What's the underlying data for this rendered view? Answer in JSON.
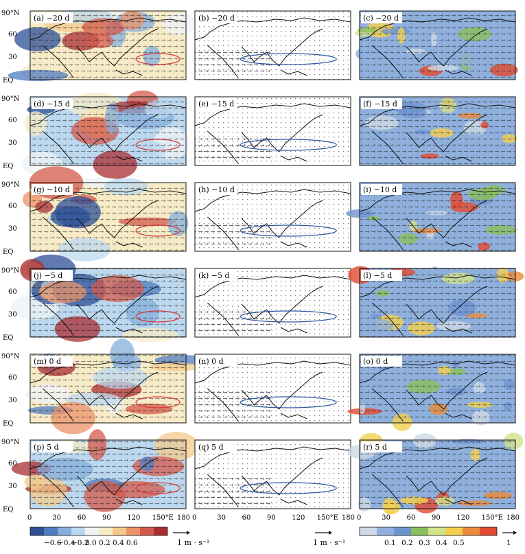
{
  "latitude_ticks": [
    "90°N",
    "60",
    "30",
    "EQ"
  ],
  "longitude_ticks": [
    "0",
    "30",
    "60",
    "90",
    "120",
    "150°E",
    "180"
  ],
  "panel_rows": [
    {
      "labels": [
        "(a) −20 d",
        "(b) −20 d",
        "(c) −20 d"
      ]
    },
    {
      "labels": [
        "(d) −15 d",
        "(e) −15 d",
        "(f) −15 d"
      ]
    },
    {
      "labels": [
        "(g) −10 d",
        "(h) −10 d",
        "(i) −10 d"
      ]
    },
    {
      "labels": [
        "(j) −5 d",
        "(k) −5 d",
        "(l) −5 d"
      ]
    },
    {
      "labels": [
        "(m) 0 d",
        "(n) 0 d",
        "(o) 0 d"
      ]
    },
    {
      "labels": [
        "(p) 5 d",
        "(q) 5 d",
        "(r) 5 d"
      ]
    }
  ],
  "left_colorbar": {
    "tick_labels": [
      "−0.6",
      "−0.4",
      "−0.2",
      "0.0",
      "0.2",
      "0.4",
      "0.6"
    ],
    "colors": [
      "#2c4f96",
      "#4f7cc0",
      "#86aedb",
      "#bcd8ee",
      "#eef3f6",
      "#f6ebc6",
      "#f3c98c",
      "#eb9368",
      "#d4594b",
      "#a82d33"
    ]
  },
  "right_colorbar": {
    "tick_labels": [
      "0.1",
      "0.2",
      "0.3",
      "0.4",
      "0.5",
      "1"
    ],
    "colors": [
      "#cdd9e6",
      "#8fb0dc",
      "#6e94cf",
      "#8bbf5d",
      "#d2e28d",
      "#f3cf4e",
      "#eb8a3a",
      "#e14a2f"
    ]
  },
  "vector_reference_label": "1 m · s⁻¹",
  "contour_color": "#d63a3a",
  "panel_column_styles": [
    {
      "type": "shaded",
      "contour_color": "#d63a3a"
    },
    {
      "type": "vectors",
      "contour_color": "#2c5aa0"
    },
    {
      "type": "shaded",
      "contour_color": "none"
    }
  ],
  "icons": {
    "reference_arrow": "arrow-right-icon"
  }
}
